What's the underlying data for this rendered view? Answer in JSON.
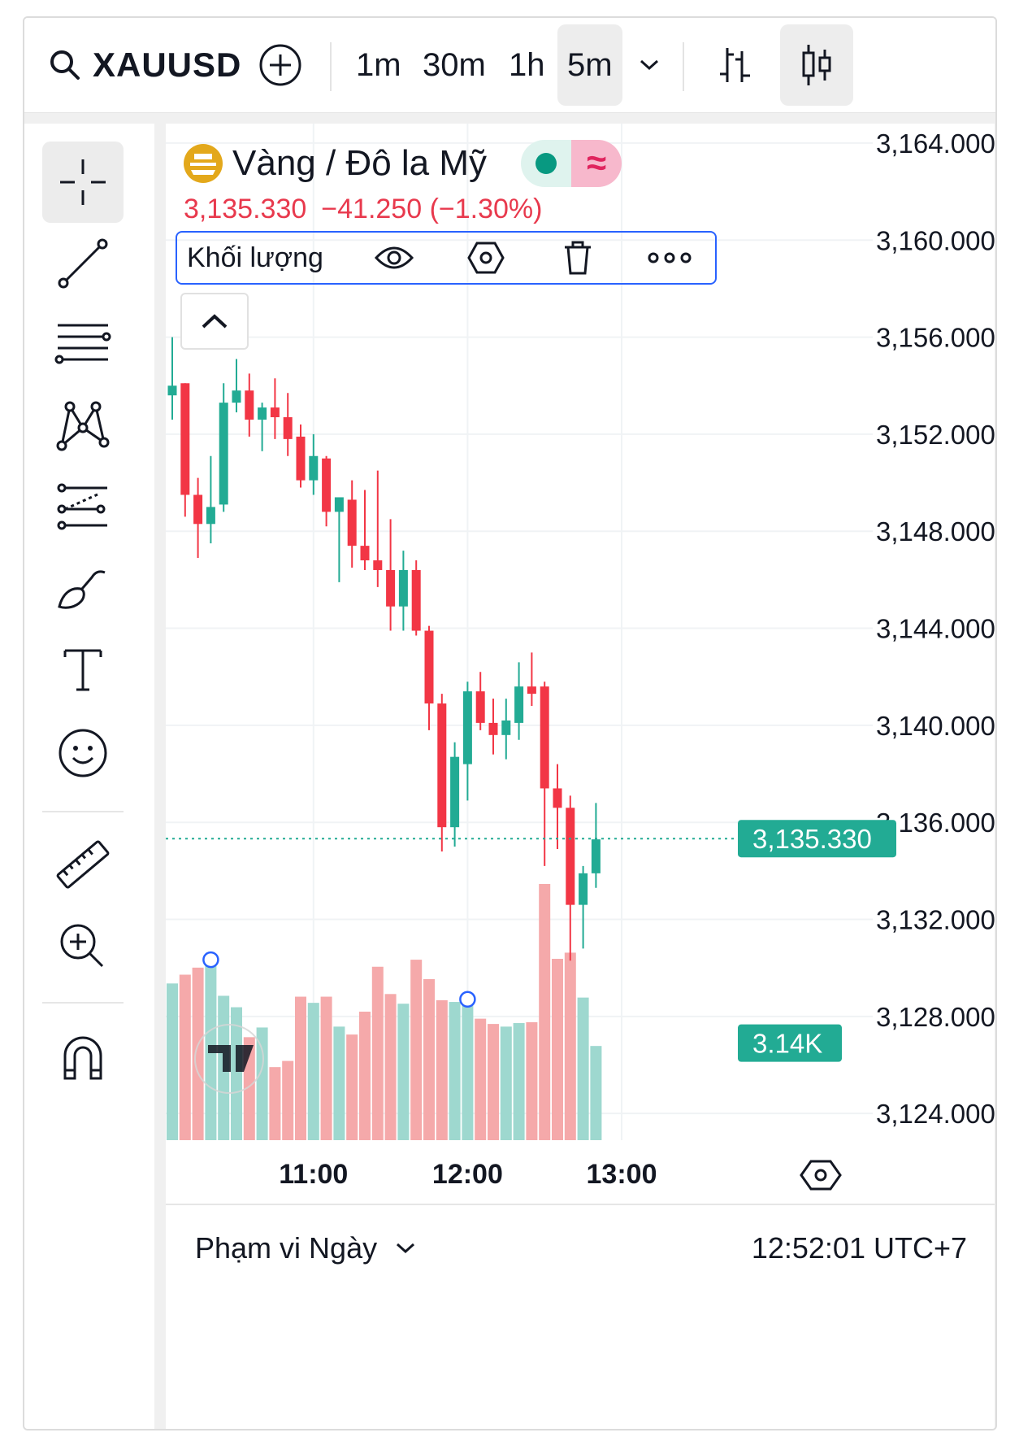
{
  "toolbar": {
    "symbol": "XAUUSD",
    "timeframes": [
      "1m",
      "30m",
      "1h",
      "5m"
    ],
    "active_timeframe": "5m"
  },
  "legend": {
    "name": "Vàng / Đô la Mỹ",
    "price": "3,135.330",
    "change": "−41.250",
    "change_pct": "(−1.30%)",
    "indicator_label": "Khối lượng"
  },
  "bottom": {
    "range_label": "Phạm vi Ngày",
    "clock": "12:52:01 UTC+7"
  },
  "colors": {
    "up": "#22ab94",
    "down": "#f23645",
    "up_volume": "#9ed8cf",
    "down_volume": "#f5a9aa",
    "badge": "#22ab94"
  },
  "chart_data": {
    "type": "candlestick",
    "x_tick_labels": [
      "11:00",
      "12:00",
      "13:00"
    ],
    "x_ticks_index": [
      11,
      23,
      35
    ],
    "y_tick_labels": [
      "3,164.000",
      "3,160.000",
      "3,156.000",
      "3,152.000",
      "3,148.000",
      "3,144.000",
      "3,140.000",
      "3,136.000",
      "3,132.000",
      "3,128.000",
      "3,124.000"
    ],
    "ylim": [
      3122.9,
      3164.4
    ],
    "last_price_label": "3,135.330",
    "last_price": 3135.33,
    "volume_label": "3.14K",
    "grid": true,
    "candles": [
      {
        "o": 3153.6,
        "h": 3156.0,
        "l": 3152.6,
        "c": 3154.0
      },
      {
        "o": 3154.1,
        "h": 3154.1,
        "l": 3148.6,
        "c": 3149.5
      },
      {
        "o": 3149.5,
        "h": 3150.2,
        "l": 3146.9,
        "c": 3148.3
      },
      {
        "o": 3148.3,
        "h": 3151.1,
        "l": 3147.5,
        "c": 3149.0
      },
      {
        "o": 3149.1,
        "h": 3154.1,
        "l": 3148.8,
        "c": 3153.3
      },
      {
        "o": 3153.3,
        "h": 3155.1,
        "l": 3152.9,
        "c": 3153.8
      },
      {
        "o": 3153.8,
        "h": 3154.5,
        "l": 3151.9,
        "c": 3152.6
      },
      {
        "o": 3152.6,
        "h": 3153.3,
        "l": 3151.3,
        "c": 3153.1
      },
      {
        "o": 3153.1,
        "h": 3154.3,
        "l": 3151.8,
        "c": 3152.7
      },
      {
        "o": 3152.7,
        "h": 3153.7,
        "l": 3151.1,
        "c": 3151.8
      },
      {
        "o": 3151.9,
        "h": 3152.4,
        "l": 3149.8,
        "c": 3150.1
      },
      {
        "o": 3150.1,
        "h": 3152.0,
        "l": 3149.5,
        "c": 3151.1
      },
      {
        "o": 3151.0,
        "h": 3151.1,
        "l": 3148.2,
        "c": 3148.8
      },
      {
        "o": 3148.8,
        "h": 3149.3,
        "l": 3145.9,
        "c": 3149.4
      },
      {
        "o": 3149.3,
        "h": 3150.1,
        "l": 3146.5,
        "c": 3147.4
      },
      {
        "o": 3147.4,
        "h": 3149.7,
        "l": 3146.4,
        "c": 3146.8
      },
      {
        "o": 3146.8,
        "h": 3150.5,
        "l": 3145.7,
        "c": 3146.4
      },
      {
        "o": 3146.4,
        "h": 3148.5,
        "l": 3143.9,
        "c": 3144.9
      },
      {
        "o": 3144.9,
        "h": 3147.2,
        "l": 3143.9,
        "c": 3146.4
      },
      {
        "o": 3146.4,
        "h": 3146.8,
        "l": 3143.7,
        "c": 3143.9
      },
      {
        "o": 3143.9,
        "h": 3144.1,
        "l": 3139.8,
        "c": 3140.9
      },
      {
        "o": 3140.9,
        "h": 3141.3,
        "l": 3134.8,
        "c": 3135.8
      },
      {
        "o": 3135.8,
        "h": 3139.3,
        "l": 3135.0,
        "c": 3138.7
      },
      {
        "o": 3138.4,
        "h": 3141.8,
        "l": 3136.9,
        "c": 3141.4
      },
      {
        "o": 3141.4,
        "h": 3142.2,
        "l": 3139.8,
        "c": 3140.1
      },
      {
        "o": 3140.1,
        "h": 3141.1,
        "l": 3138.8,
        "c": 3139.6
      },
      {
        "o": 3139.6,
        "h": 3141.1,
        "l": 3138.6,
        "c": 3140.2
      },
      {
        "o": 3140.1,
        "h": 3142.6,
        "l": 3139.4,
        "c": 3141.6
      },
      {
        "o": 3141.6,
        "h": 3143.0,
        "l": 3140.8,
        "c": 3141.3
      },
      {
        "o": 3141.6,
        "h": 3141.8,
        "l": 3134.2,
        "c": 3137.4
      },
      {
        "o": 3137.4,
        "h": 3138.4,
        "l": 3134.9,
        "c": 3136.6
      },
      {
        "o": 3136.6,
        "h": 3137.1,
        "l": 3130.3,
        "c": 3132.6
      },
      {
        "o": 3132.6,
        "h": 3134.2,
        "l": 3130.8,
        "c": 3133.9
      },
      {
        "o": 3133.9,
        "h": 3136.8,
        "l": 3133.3,
        "c": 3135.3
      }
    ],
    "volumes": [
      1780,
      1880,
      1960,
      2050,
      1640,
      1510,
      1170,
      1280,
      830,
      900,
      1630,
      1560,
      1630,
      1290,
      1200,
      1460,
      1970,
      1660,
      1550,
      2050,
      1830,
      1590,
      1570,
      1600,
      1380,
      1320,
      1290,
      1330,
      1340,
      2910,
      2060,
      2130,
      1620,
      1070
    ],
    "volume_markers_index": [
      3,
      23
    ]
  }
}
